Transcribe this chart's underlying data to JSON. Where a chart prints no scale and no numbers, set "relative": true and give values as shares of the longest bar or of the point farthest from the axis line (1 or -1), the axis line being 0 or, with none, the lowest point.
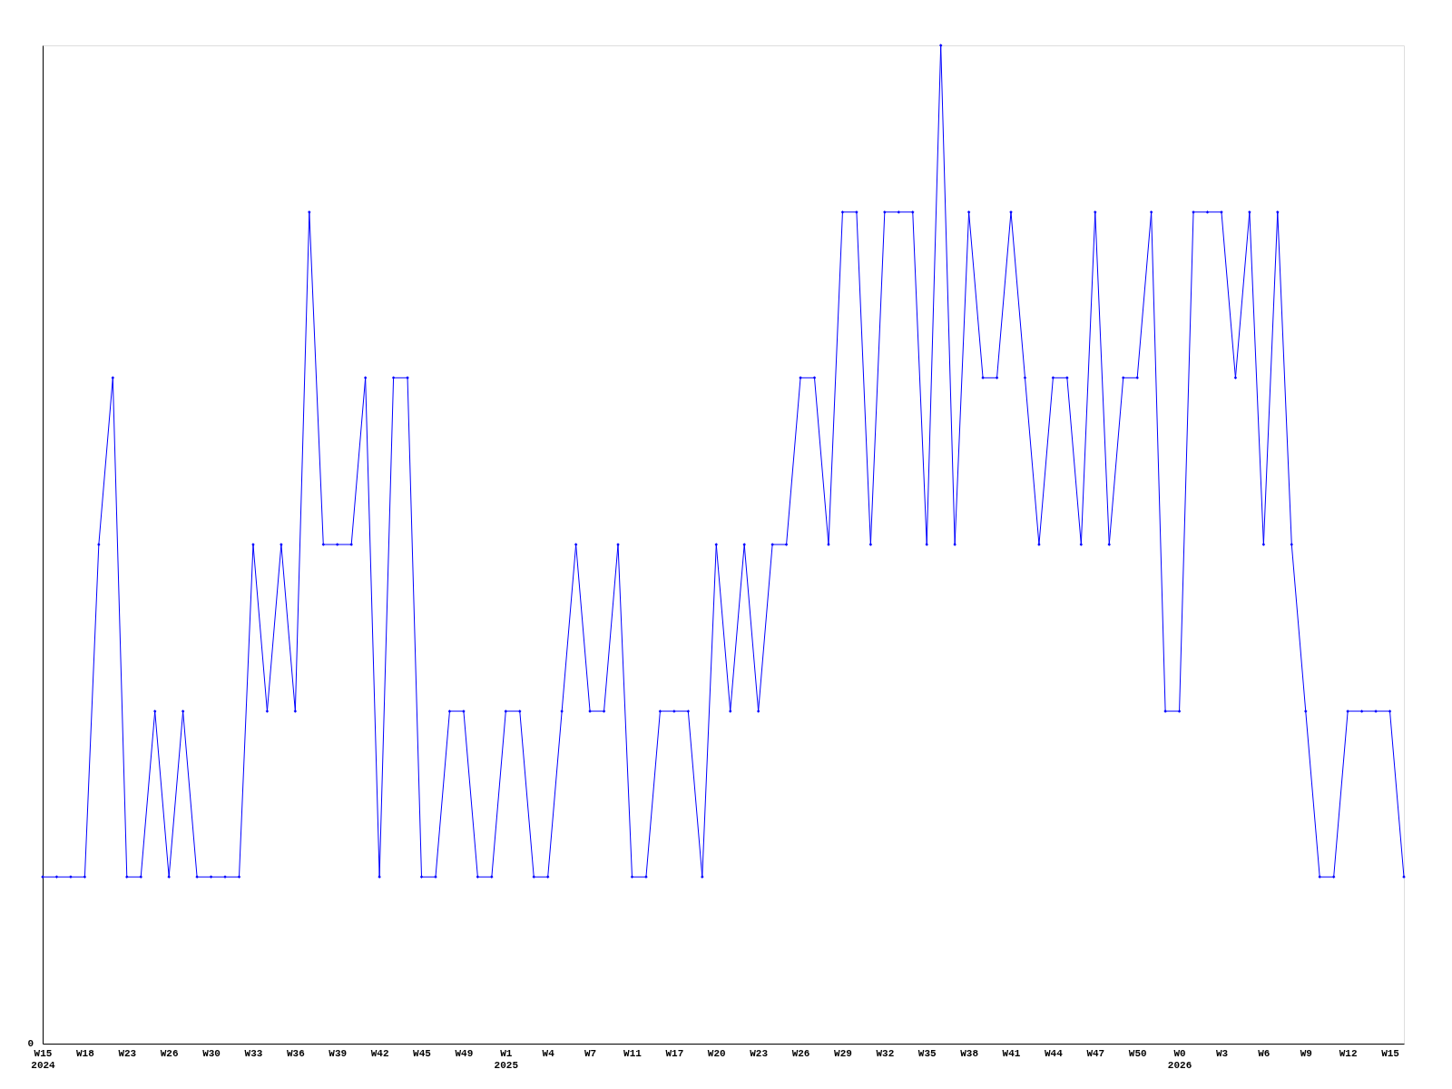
{
  "chart_data": {
    "type": "line",
    "relative": true,
    "marker": "diamond",
    "line_style": "solid",
    "grid": false,
    "legend": false,
    "categories": [
      "W15\n2024",
      null,
      null,
      "W18",
      null,
      null,
      "W23",
      null,
      null,
      "W26",
      null,
      null,
      "W30",
      null,
      null,
      "W33",
      null,
      null,
      "W36",
      null,
      null,
      "W39",
      null,
      null,
      "W42",
      null,
      null,
      "W45",
      null,
      null,
      "W49",
      null,
      null,
      "W1\n2025",
      null,
      null,
      "W4",
      null,
      null,
      "W7",
      null,
      null,
      "W11",
      null,
      null,
      "W17",
      null,
      null,
      "W20",
      null,
      null,
      "W23",
      null,
      null,
      "W26",
      null,
      null,
      "W29",
      null,
      null,
      "W32",
      null,
      null,
      "W35",
      null,
      null,
      "W38",
      null,
      null,
      "W41",
      null,
      null,
      "W44",
      null,
      null,
      "W47",
      null,
      null,
      "W50",
      null,
      null,
      "W0\n2026",
      null,
      null,
      "W3",
      null,
      null,
      "W6",
      null,
      null,
      "W9",
      null,
      null,
      "W12",
      null,
      null,
      "W15",
      null
    ],
    "series": [
      {
        "color": "#0000ff",
        "values": [
          0.167,
          0.167,
          0.167,
          0.167,
          0.5,
          0.667,
          0.167,
          0.167,
          0.333,
          0.167,
          0.333,
          0.167,
          0.167,
          0.167,
          0.167,
          0.5,
          0.333,
          0.5,
          0.333,
          0.833,
          0.5,
          0.5,
          0.5,
          0.667,
          0.167,
          0.667,
          0.667,
          0.167,
          0.167,
          0.333,
          0.333,
          0.167,
          0.167,
          0.333,
          0.333,
          0.167,
          0.167,
          0.333,
          0.5,
          0.333,
          0.333,
          0.5,
          0.167,
          0.167,
          0.333,
          0.333,
          0.333,
          0.167,
          0.5,
          0.333,
          0.5,
          0.333,
          0.5,
          0.5,
          0.667,
          0.667,
          0.5,
          0.833,
          0.833,
          0.5,
          0.833,
          0.833,
          0.833,
          0.5,
          1,
          0.5,
          0.833,
          0.667,
          0.667,
          0.833,
          0.667,
          0.5,
          0.667,
          0.667,
          0.5,
          0.833,
          0.5,
          0.667,
          0.667,
          0.833,
          0.333,
          0.333,
          0.833,
          0.833,
          0.833,
          0.667,
          0.833,
          0.5,
          0.833,
          0.5,
          0.333,
          0.167,
          0.167,
          0.333,
          0.333,
          0.333,
          0.333,
          0.167
        ]
      }
    ],
    "annotations": [
      "0"
    ]
  }
}
